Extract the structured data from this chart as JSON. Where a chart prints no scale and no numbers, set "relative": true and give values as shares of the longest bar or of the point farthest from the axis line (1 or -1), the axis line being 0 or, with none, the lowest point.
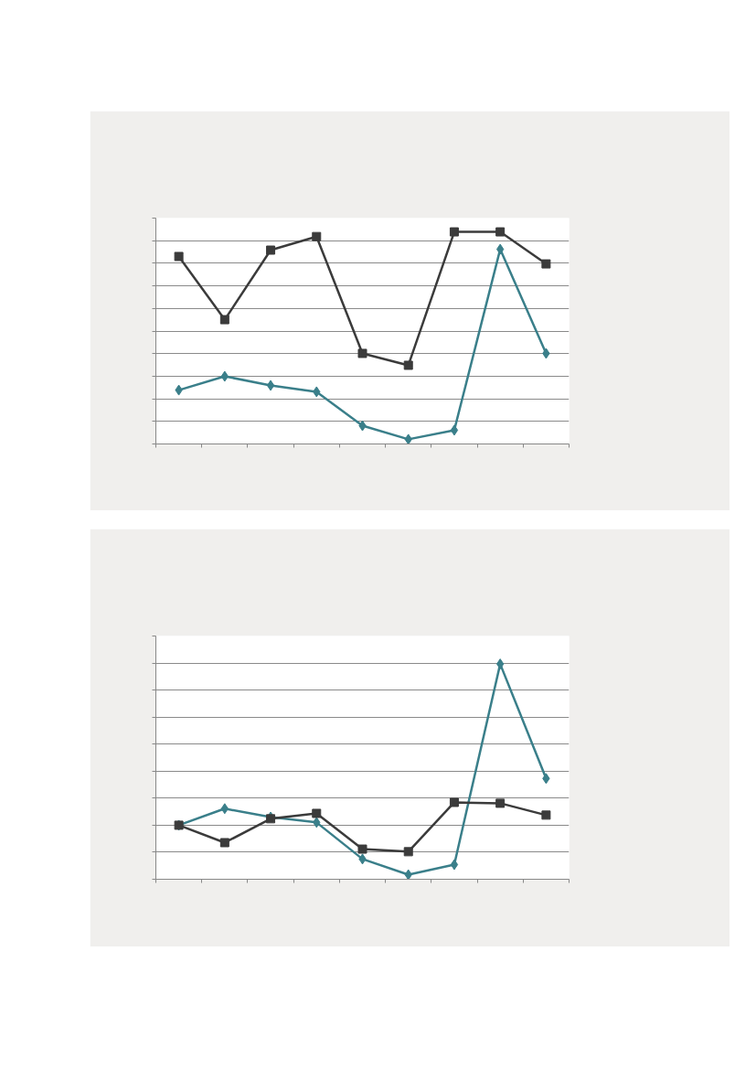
{
  "chart_data": [
    {
      "type": "line",
      "relative": true,
      "categories": [
        null,
        null,
        null,
        null,
        null,
        null,
        null,
        null,
        null
      ],
      "grid": "y",
      "series": [
        {
          "color": "#3a7f8a",
          "marker": "diamond",
          "values": [
            0.254,
            0.319,
            0.276,
            0.246,
            0.086,
            0.022,
            0.065,
            0.918,
            0.427
          ]
        },
        {
          "color": "#3b3b3b",
          "marker": "square",
          "values": [
            0.884,
            0.586,
            0.914,
            0.978,
            0.427,
            0.371,
            1,
            1,
            0.849
          ]
        }
      ]
    },
    {
      "type": "line",
      "relative": true,
      "categories": [
        null,
        null,
        null,
        null,
        null,
        null,
        null,
        null,
        null
      ],
      "grid": "y",
      "series": [
        {
          "color": "#3a7f8a",
          "marker": "diamond",
          "values": [
            0.251,
            0.328,
            0.289,
            0.264,
            0.094,
            0.021,
            0.068,
            1,
            0.468
          ]
        },
        {
          "color": "#3b3b3b",
          "marker": "square",
          "values": [
            0.251,
            0.17,
            0.281,
            0.306,
            0.14,
            0.128,
            0.357,
            0.353,
            0.298
          ]
        }
      ]
    }
  ]
}
